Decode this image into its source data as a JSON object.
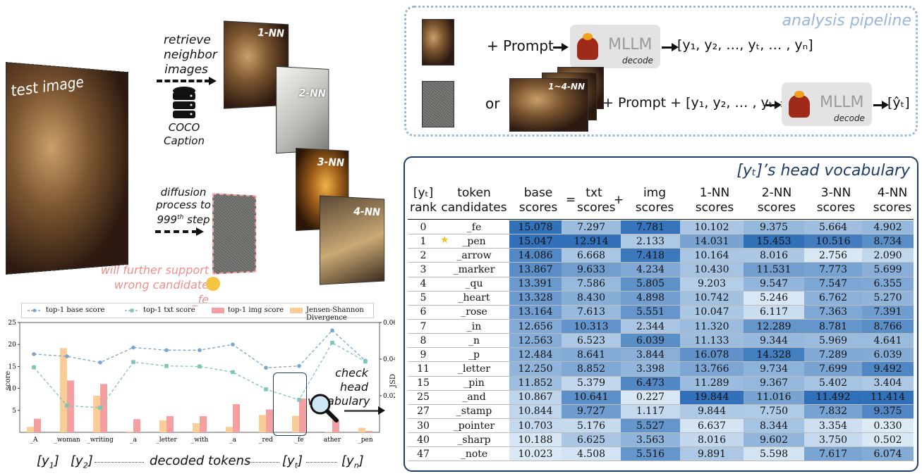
{
  "left": {
    "test_image_label": "test image",
    "retrieve_label": [
      "retrieve",
      "neighbor",
      "images"
    ],
    "db_label": [
      "COCO",
      "Caption"
    ],
    "diffusion_label": [
      "diffusion",
      "process to",
      "999",
      "th",
      " step"
    ],
    "nn_labels": [
      "1-NN",
      "2-NN",
      "3-NN",
      "4-NN"
    ],
    "warning_label": [
      "will further support",
      "wrong candidate _fe"
    ],
    "check_label": [
      "check head",
      "vocabulary"
    ],
    "bottom_labels": {
      "y1": "[y",
      "y1sub": "1",
      "y2": "[y",
      "y2sub": "2",
      "middle": "decoded tokens",
      "yt": "[y",
      "ytsub": "t",
      "yn": "[y",
      "ynsub": "n"
    }
  },
  "pipeline": {
    "title": "analysis pipeline",
    "prompt1": "+ Prompt",
    "mllm": "MLLM",
    "decode": "decode",
    "output1": "[y₁, y₂, …, yₜ, … , yₙ]",
    "or": "or",
    "nn_stack_label": "1~4-NN",
    "prompt2": "+ Prompt + [y₁, y₂, … , yₜ₋₁]",
    "output2": "[ŷₜ]"
  },
  "table": {
    "title": "[yₜ]’s head vocabulary",
    "headers": [
      [
        "[yₜ]",
        "rank"
      ],
      [
        "token",
        "candidates"
      ],
      [
        "base",
        "scores"
      ],
      [
        "="
      ],
      [
        "txt",
        "scores"
      ],
      [
        "+"
      ],
      [
        "img",
        "scores"
      ],
      [
        "1-NN",
        "scores"
      ],
      [
        "2-NN",
        "scores"
      ],
      [
        "3-NN",
        "scores"
      ],
      [
        "4-NN",
        "scores"
      ]
    ],
    "rows": [
      {
        "rank": "0",
        "token": "_fe",
        "star": false,
        "v": [
          "15.078",
          "7.297",
          "7.781",
          "10.102",
          "9.375",
          "5.664",
          "4.902"
        ]
      },
      {
        "rank": "1",
        "token": "_pen",
        "star": true,
        "v": [
          "15.047",
          "12.914",
          "2.133",
          "14.031",
          "15.453",
          "10.516",
          "8.734"
        ]
      },
      {
        "rank": "2",
        "token": "_arrow",
        "star": false,
        "v": [
          "14.086",
          "6.668",
          "7.418",
          "10.164",
          "8.016",
          "2.756",
          "2.090"
        ]
      },
      {
        "rank": "3",
        "token": "_marker",
        "star": false,
        "v": [
          "13.867",
          "9.633",
          "4.234",
          "10.430",
          "11.531",
          "7.773",
          "5.699"
        ]
      },
      {
        "rank": "4",
        "token": "_qu",
        "star": false,
        "v": [
          "13.391",
          "7.586",
          "5.805",
          "9.203",
          "9.547",
          "7.547",
          "6.355"
        ]
      },
      {
        "rank": "5",
        "token": "_heart",
        "star": false,
        "v": [
          "13.328",
          "8.430",
          "4.898",
          "10.742",
          "5.246",
          "6.762",
          "5.270"
        ]
      },
      {
        "rank": "6",
        "token": "_rose",
        "star": false,
        "v": [
          "13.164",
          "7.613",
          "5.551",
          "10.047",
          "6.117",
          "7.363",
          "7.391"
        ]
      },
      {
        "rank": "7",
        "token": "_in",
        "star": false,
        "v": [
          "12.656",
          "10.313",
          "2.344",
          "11.320",
          "12.289",
          "8.781",
          "8.766"
        ]
      },
      {
        "rank": "8",
        "token": "_n",
        "star": false,
        "v": [
          "12.563",
          "6.523",
          "6.039",
          "11.133",
          "9.344",
          "5.969",
          "4.641"
        ]
      },
      {
        "rank": "9",
        "token": "_p",
        "star": false,
        "v": [
          "12.484",
          "8.641",
          "3.844",
          "16.078",
          "14.328",
          "7.289",
          "6.039"
        ]
      },
      {
        "rank": "11",
        "token": "_letter",
        "star": false,
        "v": [
          "12.250",
          "8.852",
          "3.398",
          "13.766",
          "9.734",
          "7.699",
          "9.492"
        ]
      },
      {
        "rank": "15",
        "token": "_pin",
        "star": false,
        "v": [
          "11.852",
          "5.379",
          "6.473",
          "11.289",
          "9.367",
          "5.402",
          "3.404"
        ]
      },
      {
        "rank": "25",
        "token": "_and",
        "star": false,
        "v": [
          "10.867",
          "10.641",
          "0.227",
          "19.844",
          "11.016",
          "11.492",
          "11.414"
        ]
      },
      {
        "rank": "27",
        "token": "_stamp",
        "star": false,
        "v": [
          "10.844",
          "9.727",
          "1.117",
          "9.844",
          "7.750",
          "7.832",
          "9.375"
        ]
      },
      {
        "rank": "30",
        "token": "_pointer",
        "star": false,
        "v": [
          "10.703",
          "5.176",
          "5.527",
          "6.637",
          "8.344",
          "3.354",
          "0.330"
        ]
      },
      {
        "rank": "40",
        "token": "_sharp",
        "star": false,
        "v": [
          "10.188",
          "6.625",
          "3.563",
          "8.016",
          "9.602",
          "3.750",
          "0.502"
        ]
      },
      {
        "rank": "47",
        "token": "_note",
        "star": false,
        "v": [
          "10.023",
          "4.508",
          "5.516",
          "9.891",
          "5.598",
          "7.617",
          "6.074"
        ]
      }
    ],
    "color_ranges": [
      [
        10,
        15.1
      ],
      [
        4,
        13
      ],
      [
        0,
        8
      ],
      [
        6,
        20
      ],
      [
        5,
        15.5
      ],
      [
        2.5,
        11.5
      ],
      [
        0.3,
        11.5
      ]
    ]
  },
  "chart_data": {
    "type": "bar",
    "categories": [
      "_A",
      "_woman",
      "_writing",
      "_a",
      "_letter",
      "_with",
      "_a",
      "_red",
      "_fe",
      "ather",
      "_pen"
    ],
    "series": [
      {
        "name": "top-1 base score",
        "kind": "line",
        "axis": "left",
        "color": "#7aa6cc",
        "values": [
          17.8,
          17.3,
          15.9,
          19.3,
          18.7,
          18.7,
          20.0,
          14.7,
          15.1,
          23.2,
          16.3
        ]
      },
      {
        "name": "top-1 txt score",
        "kind": "line",
        "axis": "left",
        "color": "#7ec4b8",
        "values": [
          14.8,
          6.1,
          5.6,
          16.0,
          15.1,
          15.0,
          13.7,
          9.8,
          7.4,
          20.4,
          16.1
        ]
      },
      {
        "name": "top-1 img score",
        "kind": "bar",
        "axis": "left",
        "color": "#f4a0a0",
        "values": [
          3.1,
          11.8,
          11.0,
          3.0,
          3.7,
          3.7,
          6.4,
          5.2,
          7.7,
          2.8,
          0.3
        ]
      },
      {
        "name": "Jensen-Shannon Divergence",
        "kind": "bar",
        "axis": "right",
        "color": "#f9cc98",
        "values": [
          0.003,
          0.046,
          0.02,
          0.0005,
          0.0065,
          0.005,
          0.003,
          0.0095,
          0.009,
          0.0003,
          0.0025
        ]
      }
    ],
    "xlabel": "",
    "ylabel": "score",
    "y2label": "JSD",
    "ylim": [
      0,
      25
    ],
    "y2lim": [
      0,
      0.06
    ],
    "yticks": [
      "5",
      "10",
      "15",
      "20",
      "25"
    ],
    "y2ticks": [
      "0.02",
      "0.04",
      "0.06"
    ],
    "legend_position": "top",
    "grid": false
  }
}
